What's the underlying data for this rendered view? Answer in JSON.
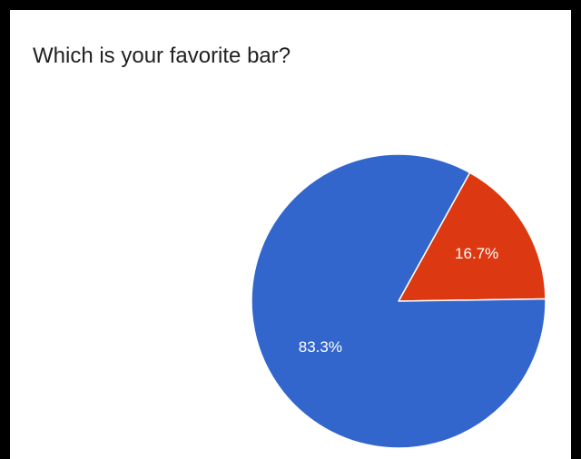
{
  "chart_data": {
    "type": "pie",
    "title": "Which is your favorite bar?",
    "slices": [
      {
        "value": 16.7,
        "label": "16.7%",
        "color": "#dc3912"
      },
      {
        "value": 83.3,
        "label": "83.3%",
        "color": "#3366cc"
      }
    ],
    "start_angle_deg": -61,
    "direction": "clockwise"
  }
}
